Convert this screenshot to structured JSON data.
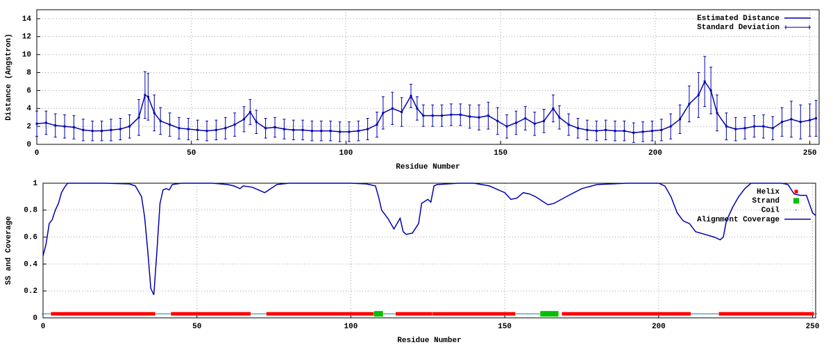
{
  "chart_data": [
    {
      "type": "line",
      "xlabel": "Residue Number",
      "ylabel": "Distance (Angstron)",
      "xlim": [
        0,
        253
      ],
      "ylim": [
        0,
        15
      ],
      "xticks": [
        0,
        50,
        100,
        150,
        200,
        250
      ],
      "yticks": [
        0,
        2,
        4,
        6,
        8,
        10,
        12,
        14
      ],
      "grid": true,
      "legend": "top-right",
      "x": [
        0,
        3,
        6,
        9,
        12,
        15,
        18,
        21,
        24,
        27,
        30,
        33,
        35,
        36,
        38,
        40,
        43,
        46,
        49,
        52,
        55,
        58,
        61,
        64,
        67,
        69,
        71,
        74,
        77,
        80,
        83,
        86,
        89,
        92,
        95,
        98,
        101,
        104,
        107,
        110,
        112,
        115,
        118,
        121,
        123,
        125,
        128,
        131,
        134,
        137,
        140,
        143,
        146,
        149,
        152,
        155,
        158,
        161,
        164,
        167,
        169,
        172,
        175,
        178,
        181,
        184,
        187,
        190,
        193,
        196,
        199,
        202,
        205,
        208,
        211,
        214,
        216,
        218,
        220,
        223,
        226,
        229,
        232,
        235,
        238,
        241,
        244,
        247,
        250,
        252
      ],
      "series": [
        {
          "name": "Estimated Distance",
          "color": "#0000b0",
          "style": "line",
          "values": [
            2.3,
            2.4,
            2.1,
            2.0,
            1.9,
            1.6,
            1.5,
            1.5,
            1.6,
            1.7,
            2.0,
            3.0,
            5.5,
            5.3,
            3.5,
            2.6,
            2.2,
            1.8,
            1.7,
            1.6,
            1.5,
            1.6,
            1.8,
            2.2,
            2.8,
            3.6,
            2.5,
            1.8,
            1.9,
            1.7,
            1.6,
            1.6,
            1.5,
            1.5,
            1.5,
            1.4,
            1.4,
            1.5,
            1.7,
            2.2,
            3.5,
            4.0,
            3.6,
            5.4,
            4.0,
            3.2,
            3.2,
            3.2,
            3.3,
            3.3,
            3.1,
            3.0,
            3.2,
            2.6,
            2.0,
            2.4,
            2.9,
            2.3,
            2.6,
            4.0,
            3.0,
            2.2,
            1.8,
            1.6,
            1.5,
            1.6,
            1.5,
            1.5,
            1.3,
            1.4,
            1.5,
            1.6,
            2.0,
            2.8,
            4.5,
            5.5,
            7.0,
            6.0,
            3.5,
            2.0,
            1.7,
            1.8,
            2.0,
            2.0,
            1.8,
            2.5,
            2.8,
            2.5,
            2.7,
            2.9
          ]
        },
        {
          "name": "Standard Deviation",
          "color": "#0000b0",
          "style": "errorbars",
          "values": [
            1.4,
            1.3,
            1.3,
            1.3,
            1.3,
            1.2,
            1.1,
            1.1,
            1.2,
            1.2,
            1.3,
            2.0,
            2.6,
            2.6,
            2.0,
            1.5,
            1.3,
            1.2,
            1.2,
            1.1,
            1.1,
            1.1,
            1.2,
            1.3,
            1.4,
            1.4,
            1.3,
            1.1,
            1.1,
            1.1,
            1.1,
            1.1,
            1.1,
            1.1,
            1.1,
            1.1,
            1.1,
            1.1,
            1.2,
            1.4,
            1.8,
            1.8,
            1.6,
            1.3,
            1.3,
            1.2,
            1.2,
            1.2,
            1.2,
            1.2,
            1.3,
            1.4,
            1.5,
            1.5,
            1.3,
            1.3,
            1.3,
            1.3,
            1.3,
            1.5,
            1.3,
            1.2,
            1.1,
            1.1,
            1.1,
            1.1,
            1.1,
            1.1,
            1.1,
            1.1,
            1.1,
            1.2,
            1.4,
            1.6,
            2.0,
            2.5,
            2.8,
            2.6,
            2.0,
            1.5,
            1.3,
            1.2,
            1.2,
            1.3,
            1.3,
            1.6,
            2.0,
            1.9,
            1.8,
            2.0
          ]
        }
      ]
    },
    {
      "type": "line",
      "xlabel": "Residue Number",
      "ylabel": "SS and Coverage",
      "xlim": [
        0,
        251
      ],
      "ylim": [
        0,
        1
      ],
      "xticks": [
        0,
        50,
        100,
        150,
        200,
        250
      ],
      "yticks": [
        0,
        0.2,
        0.4,
        0.6,
        0.8,
        1
      ],
      "grid": true,
      "legend": "top-right",
      "series": [
        {
          "name": "Helix",
          "color": "#ff0000",
          "style": "segments",
          "marker": "star",
          "y": 0.03,
          "segments": [
            [
              3,
              36
            ],
            [
              42,
              67
            ],
            [
              73,
              107
            ],
            [
              115,
              126
            ],
            [
              127,
              153
            ],
            [
              169,
              210
            ],
            [
              220,
              250
            ]
          ]
        },
        {
          "name": "Strand",
          "color": "#00c000",
          "style": "segments",
          "marker": "square",
          "y": 0.03,
          "segments": [
            [
              108,
              110
            ],
            [
              162,
              167
            ]
          ]
        },
        {
          "name": "Coil",
          "color": "#0080a0",
          "style": "segments",
          "marker": "dot",
          "y": 0.03,
          "segments": [
            [
              0,
              2
            ],
            [
              37,
              41
            ],
            [
              68,
              72
            ],
            [
              111,
              114
            ],
            [
              154,
              161
            ],
            [
              211,
              219
            ],
            [
              251,
              251
            ]
          ]
        },
        {
          "name": "Alignment Coverage",
          "color": "#0000b0",
          "style": "line",
          "x": [
            0,
            1,
            2,
            3,
            4,
            5,
            6,
            7,
            8,
            20,
            28,
            30,
            32,
            33,
            34,
            35,
            36,
            37,
            38,
            39,
            40,
            41,
            42,
            45,
            55,
            60,
            62,
            64,
            65,
            68,
            70,
            72,
            74,
            76,
            80,
            100,
            105,
            108,
            109,
            110,
            112,
            114,
            116,
            117,
            118,
            120,
            122,
            123,
            125,
            126,
            127,
            128,
            135,
            140,
            145,
            150,
            152,
            154,
            156,
            158,
            160,
            162,
            164,
            166,
            170,
            175,
            180,
            190,
            200,
            202,
            204,
            206,
            208,
            210,
            212,
            215,
            218,
            220,
            221,
            222,
            224,
            226,
            228,
            230,
            240,
            242,
            244,
            246,
            248,
            250,
            251
          ],
          "values": [
            0.46,
            0.55,
            0.7,
            0.73,
            0.8,
            0.85,
            0.93,
            0.97,
            1.0,
            1.0,
            0.995,
            0.98,
            0.9,
            0.75,
            0.5,
            0.22,
            0.17,
            0.5,
            0.85,
            0.95,
            0.96,
            0.95,
            0.99,
            1.0,
            1.0,
            0.99,
            0.98,
            0.96,
            0.98,
            0.97,
            0.95,
            0.93,
            0.96,
            0.99,
            1.0,
            1.0,
            0.995,
            0.98,
            0.9,
            0.8,
            0.74,
            0.66,
            0.74,
            0.64,
            0.62,
            0.63,
            0.7,
            0.85,
            0.88,
            0.86,
            0.98,
            0.99,
            1.0,
            1.0,
            0.98,
            0.93,
            0.88,
            0.89,
            0.93,
            0.92,
            0.9,
            0.87,
            0.84,
            0.85,
            0.9,
            0.96,
            0.99,
            1.0,
            1.0,
            0.98,
            0.9,
            0.78,
            0.72,
            0.7,
            0.64,
            0.62,
            0.6,
            0.58,
            0.6,
            0.72,
            0.82,
            0.9,
            0.96,
            1.0,
            1.0,
            0.99,
            0.92,
            0.91,
            0.91,
            0.78,
            0.76
          ]
        }
      ]
    }
  ]
}
